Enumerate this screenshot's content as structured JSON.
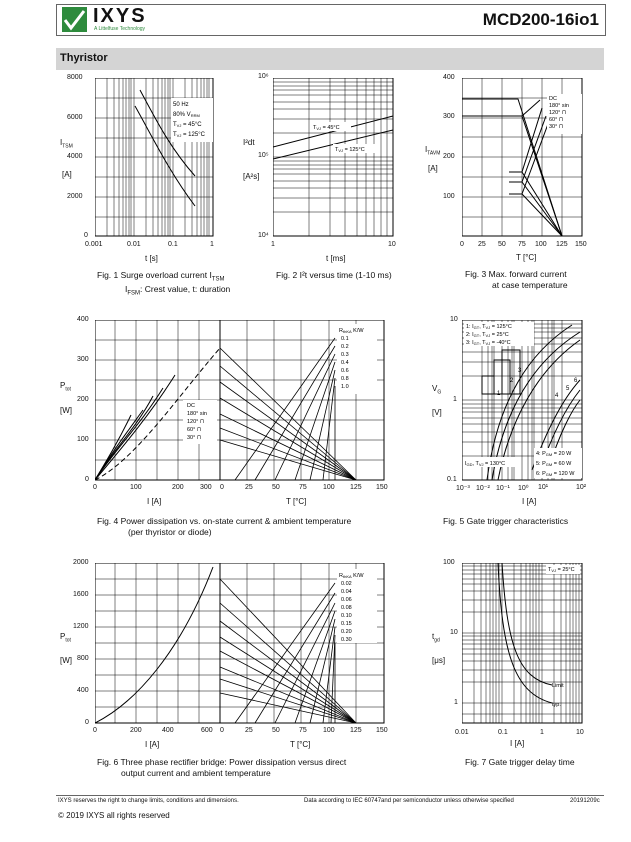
{
  "header": {
    "brand": "IXYS",
    "brand_sub": "A Littelfuse Technology",
    "part": "MCD200-16io1"
  },
  "section": "Thyristor",
  "fig1": {
    "caption1": "Fig. 1  Surge overload current I",
    "caption1_sub": "TSM",
    "caption2": "I",
    "caption2_sub": "FSM",
    "caption2_rest": ": Crest value, t: duration",
    "ylabel": "I",
    "ylabel_sub": "TSM",
    "yunit": "[A]",
    "xlabel": "t  [s]",
    "yticks": [
      "8000",
      "6000",
      "4000",
      "2000",
      "0"
    ],
    "xticks": [
      "0.001",
      "0.01",
      "0.1",
      "1"
    ],
    "legend": [
      "50 Hz",
      "80% V",
      "T   =  45°C",
      "T   = 125°C"
    ]
  },
  "fig2": {
    "caption": "Fig. 2  I²t versus time (1-10 ms)",
    "ylabel": "I²dt",
    "yunit": "[A²s]",
    "xlabel": "t  [ms]",
    "yticks": [
      "10⁶",
      "10⁵",
      "10⁴"
    ],
    "xticks": [
      "1",
      "10"
    ],
    "l1": "T   = 45°C",
    "l2": "T   = 125°C"
  },
  "fig3": {
    "caption1": "Fig. 3  Max. forward current",
    "caption2": "at case temperature",
    "ylabel": "I",
    "ylabel_sub": "TAVM",
    "yunit": "[A]",
    "xlabel": "T  [°C]",
    "yticks": [
      "400",
      "300",
      "200",
      "100",
      "0"
    ],
    "xticks": [
      "0",
      "25",
      "50",
      "75",
      "100",
      "125",
      "150"
    ],
    "legend": [
      "DC",
      "180° sin",
      "120° ⊓",
      "60° ⊓",
      "30° ⊓"
    ]
  },
  "fig4": {
    "caption1": "Fig. 4  Power dissipation vs. on-state current & ambient temperature",
    "caption2": "(per thyristor or diode)",
    "ylabel": "P",
    "ylabel_sub": "tot",
    "yunit": "[W]",
    "xlabel1": "I    [A]",
    "xlabel2": "T  [°C]",
    "yticks": [
      "400",
      "300",
      "200",
      "100",
      "0"
    ],
    "xticks1": [
      "0",
      "100",
      "200",
      "300"
    ],
    "xticks2": [
      "0",
      "25",
      "50",
      "75",
      "100",
      "125",
      "150"
    ],
    "rthka": [
      "R    K/W",
      "0.1",
      "0.2",
      "0.3",
      "0.4",
      "0.6",
      "0.8",
      "1.0"
    ],
    "legend": [
      "DC",
      "180° sin",
      "120° ⊓",
      "60° ⊓",
      "30° ⊓"
    ]
  },
  "fig5": {
    "caption": "Fig. 5  Gate trigger characteristics",
    "ylabel": "V",
    "ylabel_sub": "G",
    "yunit": "[V]",
    "xlabel": "I  [A]",
    "yticks": [
      "10",
      "1",
      "0.1"
    ],
    "xticks": [
      "10⁻³",
      "10⁻²",
      "10⁻¹",
      "10⁰",
      "10¹",
      "10²"
    ],
    "legend": [
      "1: I   , T   = 125°C",
      "2: I   , T   =  25°C",
      "3: I   , T   = -40°C"
    ],
    "pgm": [
      "4: P   = 20 W",
      "5: P   = 60 W",
      "6: P   = 120 W"
    ],
    "igd": "I   , T   = 130°C"
  },
  "fig6": {
    "caption1": "Fig. 6  Three phase rectifier bridge: Power dissipation versus direct",
    "caption2": "output current and ambient temperature",
    "ylabel": "P",
    "ylabel_sub": "tot",
    "yunit": "[W]",
    "xlabel1": "I     [A]",
    "xlabel2": "T  [°C]",
    "yticks": [
      "2000",
      "1600",
      "1200",
      "800",
      "400",
      "0"
    ],
    "xticks1": [
      "0",
      "200",
      "400",
      "600"
    ],
    "xticks2": [
      "0",
      "25",
      "50",
      "75",
      "100",
      "125",
      "150"
    ],
    "rthka": [
      "R    K/W",
      "0.02",
      "0.04",
      "0.06",
      "0.08",
      "0.10",
      "0.15",
      "0.20",
      "0.30"
    ]
  },
  "fig7": {
    "caption": "Fig. 7  Gate trigger delay time",
    "ylabel": "t",
    "ylabel_sub": "gd",
    "yunit": "[μs]",
    "xlabel": "I  [A]",
    "yticks": [
      "100",
      "10",
      "1"
    ],
    "xticks": [
      "0.01",
      "0.1",
      "1",
      "10"
    ],
    "tvj": "T   = 25°C",
    "lim": "Limit",
    "typ": "typ."
  },
  "footer": {
    "left": "IXYS reserves the right to change limits, conditions and dimensions.",
    "mid": "Data according to IEC 60747and per semiconductor unless otherwise specified",
    "right": "20191209c",
    "copy": "© 2019  IXYS all rights reserved"
  }
}
